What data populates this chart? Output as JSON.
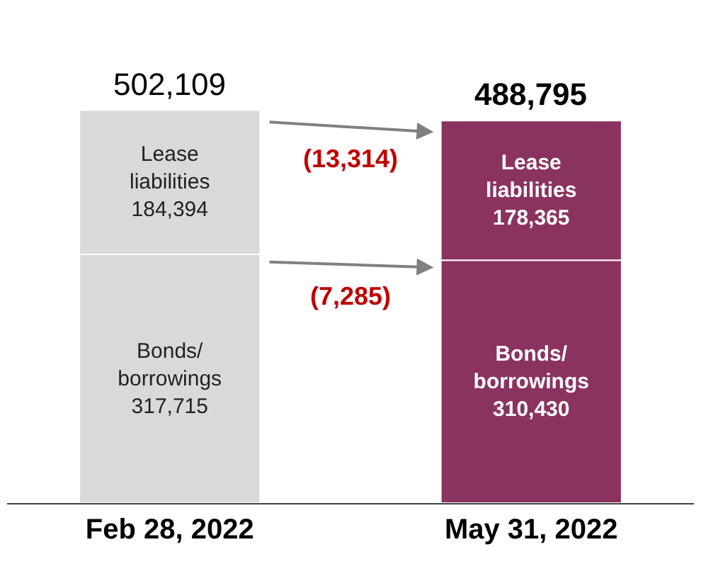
{
  "chart_data": {
    "type": "bar",
    "stacked": true,
    "categories": [
      "Feb 28, 2022",
      "May 31, 2022"
    ],
    "series": [
      {
        "name": "Bonds/ borrowings",
        "colors": [
          "#d9d9d9",
          "#8b3360"
        ],
        "values": [
          317715,
          310430
        ],
        "value_labels": [
          "317,715",
          "310,430"
        ]
      },
      {
        "name": "Lease liabilities",
        "colors": [
          "#d9d9d9",
          "#8b3360"
        ],
        "values": [
          184394,
          178365
        ],
        "value_labels": [
          "184,394",
          "178,365"
        ]
      }
    ],
    "totals": [
      "502,109",
      "488,795"
    ],
    "annotations": [
      "(13,314)",
      "(7,285)"
    ],
    "legend": false
  }
}
